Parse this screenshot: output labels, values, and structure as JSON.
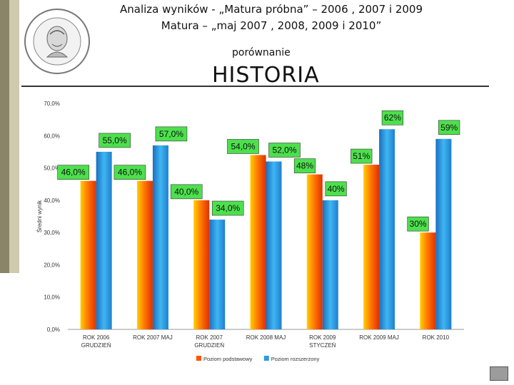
{
  "header": {
    "line1": "Analiza wyników  - „Matura próbna” – 2006 , 2007 i 2009",
    "line2": "Matura – „maj 2007 , 2008, 2009 i 2010”",
    "subtitle": "porównanie",
    "heading": "HISTORIA"
  },
  "logo": {
    "text": "LICEUM OGÓLNOKSZTAŁCĄCE IM. HENRYKA SIENKIEWICZA",
    "bottom": "NOWA SOL"
  },
  "colors": {
    "basic": "#ff5500",
    "extended": "#2f9be0"
  },
  "chart_data": {
    "type": "bar",
    "categories": [
      [
        "ROK 2006",
        "GRUDZIEŃ"
      ],
      [
        "ROK 2007 MAJ"
      ],
      [
        "ROK 2007",
        "GRUDZIEŃ"
      ],
      [
        "ROK 2008 MAJ"
      ],
      [
        "ROK 2009",
        "STYCZEŃ"
      ],
      [
        "ROK 2009 MAJ"
      ],
      [
        "ROK 2010"
      ]
    ],
    "series": [
      {
        "name": "Poziom podstawowy",
        "values": [
          46.0,
          46.0,
          40.0,
          54.0,
          48.0,
          51.0,
          30.0
        ],
        "labels": [
          "46,0%",
          "46,0%",
          "40,0%",
          "54,0%",
          "48%",
          "51%",
          "30%"
        ]
      },
      {
        "name": "Poziom rozszerzony",
        "values": [
          55.0,
          57.0,
          34.0,
          52.0,
          40.0,
          62.0,
          59.0
        ],
        "labels": [
          "55,0%",
          "57,0%",
          "34,0%",
          "52,0%",
          "40%",
          "62%",
          "59%"
        ]
      }
    ],
    "ylabel": "Średni wynik",
    "ylim": [
      0,
      70
    ],
    "yticks": [
      "0,0%",
      "10,0%",
      "20,0%",
      "30,0%",
      "40,0%",
      "50,0%",
      "60,0%",
      "70,0%"
    ],
    "legend_position": "bottom"
  }
}
